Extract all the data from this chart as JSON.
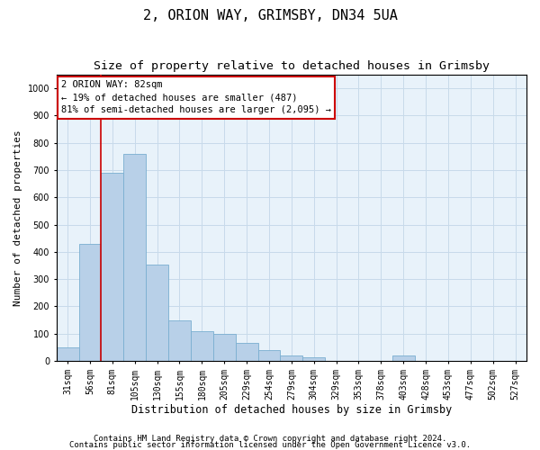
{
  "title1": "2, ORION WAY, GRIMSBY, DN34 5UA",
  "title2": "Size of property relative to detached houses in Grimsby",
  "xlabel": "Distribution of detached houses by size in Grimsby",
  "ylabel": "Number of detached properties",
  "categories": [
    "31sqm",
    "56sqm",
    "81sqm",
    "105sqm",
    "130sqm",
    "155sqm",
    "180sqm",
    "205sqm",
    "229sqm",
    "254sqm",
    "279sqm",
    "304sqm",
    "329sqm",
    "353sqm",
    "378sqm",
    "403sqm",
    "428sqm",
    "453sqm",
    "477sqm",
    "502sqm",
    "527sqm"
  ],
  "values": [
    50,
    430,
    690,
    760,
    355,
    150,
    110,
    100,
    65,
    40,
    20,
    15,
    0,
    0,
    0,
    20,
    0,
    0,
    0,
    0,
    0
  ],
  "bar_color": "#b8d0e8",
  "bar_edge_color": "#7aaed0",
  "vline_color": "#cc0000",
  "vline_x_idx": 1.5,
  "annotation_text": "2 ORION WAY: 82sqm\n← 19% of detached houses are smaller (487)\n81% of semi-detached houses are larger (2,095) →",
  "annotation_box_facecolor": "white",
  "annotation_box_edgecolor": "#cc0000",
  "ylim": [
    0,
    1050
  ],
  "yticks": [
    0,
    100,
    200,
    300,
    400,
    500,
    600,
    700,
    800,
    900,
    1000
  ],
  "grid_color": "#c8daea",
  "background_color": "#e8f2fa",
  "footer1": "Contains HM Land Registry data © Crown copyright and database right 2024.",
  "footer2": "Contains public sector information licensed under the Open Government Licence v3.0.",
  "title1_fontsize": 11,
  "title2_fontsize": 9.5,
  "xlabel_fontsize": 8.5,
  "ylabel_fontsize": 8,
  "tick_fontsize": 7,
  "annotation_fontsize": 7.5,
  "footer_fontsize": 6.5
}
